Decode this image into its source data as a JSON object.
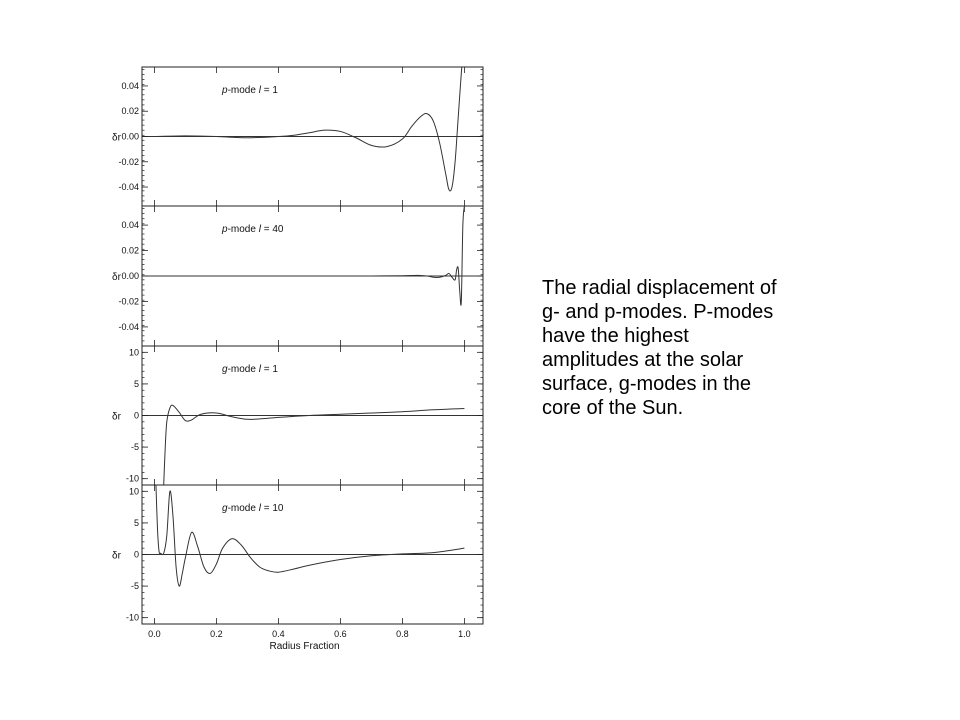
{
  "caption": "The radial displacement of\ng- and p-modes. P-modes\nhave the highest\namplitudes at the solar\nsurface, g-modes in the\ncore of the Sun.",
  "chart_data": [
    {
      "type": "line",
      "panel_label_prefix": "p",
      "panel_label_mode": "-mode ",
      "panel_label_l": "l",
      "panel_label_eq": " = 1",
      "ylabel": "δr",
      "xlabel": "",
      "ylim": [
        -0.055,
        0.055
      ],
      "yticks": [
        0.04,
        0.02,
        0.0,
        -0.02,
        -0.04
      ],
      "ytick_labels": [
        "0.04",
        "0.02",
        "0.00",
        "-0.02",
        "-0.04"
      ],
      "xlim": [
        -0.04,
        1.06
      ],
      "series": [
        {
          "x": [
            0.0,
            0.1,
            0.2,
            0.3,
            0.4,
            0.45,
            0.5,
            0.55,
            0.6,
            0.65,
            0.7,
            0.75,
            0.8,
            0.83,
            0.86,
            0.88,
            0.9,
            0.92,
            0.94,
            0.95,
            0.96,
            0.97,
            0.98,
            0.99,
            1.0
          ],
          "y": [
            0.0,
            0.0005,
            0.0,
            -0.001,
            0.0,
            0.001,
            0.003,
            0.005,
            0.004,
            -0.001,
            -0.007,
            -0.008,
            -0.002,
            0.008,
            0.016,
            0.018,
            0.012,
            -0.005,
            -0.03,
            -0.042,
            -0.04,
            -0.02,
            0.015,
            0.05,
            0.08
          ]
        }
      ]
    },
    {
      "type": "line",
      "panel_label_prefix": "p",
      "panel_label_mode": "-mode ",
      "panel_label_l": "l",
      "panel_label_eq": " = 40",
      "ylabel": "δr",
      "xlabel": "",
      "ylim": [
        -0.055,
        0.055
      ],
      "yticks": [
        0.04,
        0.02,
        0.0,
        -0.02,
        -0.04
      ],
      "ytick_labels": [
        "0.04",
        "0.02",
        "0.00",
        "-0.02",
        "-0.04"
      ],
      "xlim": [
        -0.04,
        1.06
      ],
      "series": [
        {
          "x": [
            0.0,
            0.5,
            0.7,
            0.8,
            0.85,
            0.88,
            0.9,
            0.92,
            0.94,
            0.95,
            0.96,
            0.97,
            0.975,
            0.98,
            0.985,
            0.99,
            0.995,
            1.0
          ],
          "y": [
            0.0,
            0.0,
            0.0,
            0.0002,
            0.0005,
            0.0,
            -0.001,
            -0.001,
            0.0005,
            0.002,
            -0.001,
            -0.003,
            0.005,
            0.006,
            -0.012,
            -0.02,
            0.04,
            0.055
          ]
        }
      ]
    },
    {
      "type": "line",
      "panel_label_prefix": "g",
      "panel_label_mode": "-mode ",
      "panel_label_l": "l",
      "panel_label_eq": " = 1",
      "ylabel": "δr",
      "xlabel": "",
      "ylim": [
        -11,
        11
      ],
      "yticks": [
        10,
        5,
        0,
        -5,
        -10
      ],
      "ytick_labels": [
        "10",
        "5",
        "0",
        "-5",
        "-10"
      ],
      "xlim": [
        -0.04,
        1.06
      ],
      "series": [
        {
          "x": [
            0.03,
            0.035,
            0.04,
            0.05,
            0.06,
            0.08,
            0.1,
            0.12,
            0.15,
            0.2,
            0.25,
            0.3,
            0.35,
            0.4,
            0.5,
            0.6,
            0.7,
            0.8,
            0.9,
            1.0
          ],
          "y": [
            -11,
            -5,
            -1,
            1.2,
            1.6,
            0.5,
            -0.8,
            -0.7,
            0.2,
            0.4,
            -0.2,
            -0.6,
            -0.5,
            -0.3,
            0.0,
            0.2,
            0.4,
            0.6,
            0.9,
            1.1
          ]
        }
      ]
    },
    {
      "type": "line",
      "panel_label_prefix": "g",
      "panel_label_mode": "-mode ",
      "panel_label_l": "l",
      "panel_label_eq": " = 10",
      "ylabel": "δr",
      "xlabel": "Radius Fraction",
      "ylim": [
        -11,
        11
      ],
      "yticks": [
        10,
        5,
        0,
        -5,
        -10
      ],
      "ytick_labels": [
        "10",
        "5",
        "0",
        "-5",
        "-10"
      ],
      "xlim": [
        -0.04,
        1.06
      ],
      "xticks": [
        0.0,
        0.2,
        0.4,
        0.6,
        0.8,
        1.0
      ],
      "xtick_labels": [
        "0.0",
        "0.2",
        "0.4",
        "0.6",
        "0.8",
        "1.0"
      ],
      "series": [
        {
          "x": [
            0.005,
            0.01,
            0.015,
            0.02,
            0.03,
            0.04,
            0.05,
            0.06,
            0.07,
            0.08,
            0.09,
            0.1,
            0.12,
            0.14,
            0.16,
            0.18,
            0.2,
            0.22,
            0.25,
            0.28,
            0.31,
            0.34,
            0.37,
            0.4,
            0.45,
            0.5,
            0.6,
            0.7,
            0.8,
            0.9,
            1.0
          ],
          "y": [
            11,
            4,
            0.5,
            0.2,
            0.2,
            3,
            10,
            6,
            -2,
            -5,
            -3,
            -0.5,
            3.5,
            1.2,
            -2,
            -3,
            -1.5,
            1,
            2.5,
            1.5,
            -0.5,
            -2,
            -2.6,
            -2.8,
            -2.3,
            -1.7,
            -0.8,
            -0.2,
            0.1,
            0.3,
            1.0
          ]
        }
      ]
    }
  ]
}
